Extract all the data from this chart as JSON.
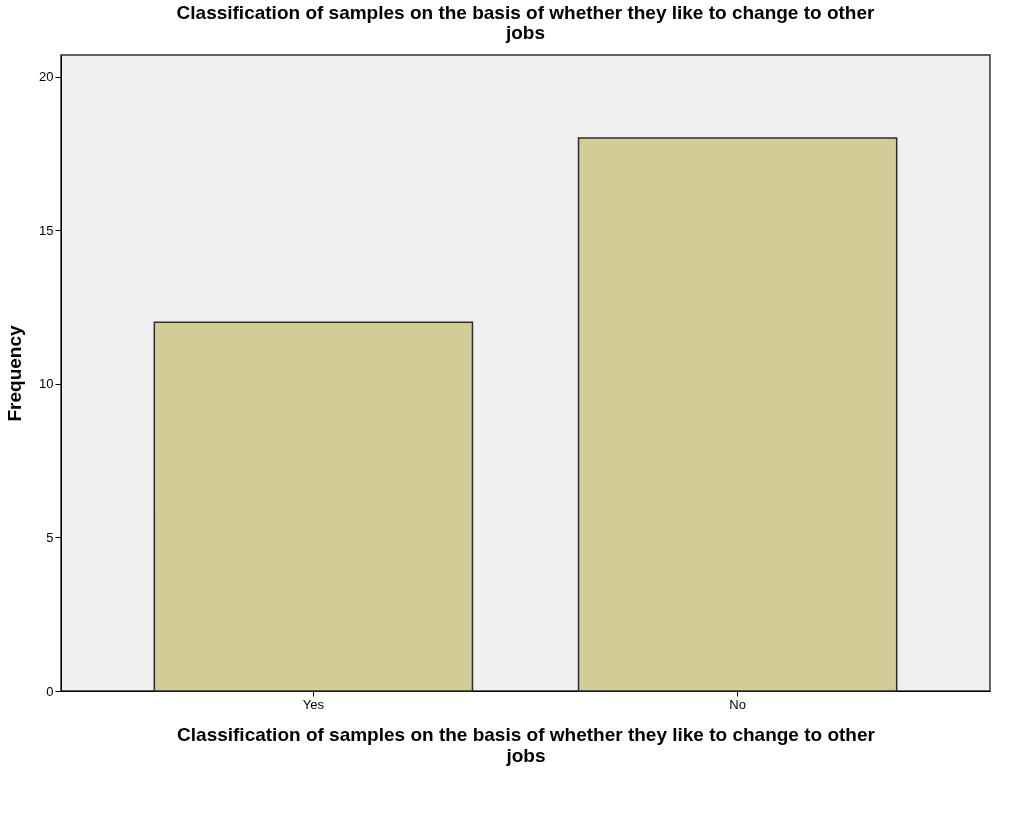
{
  "chart_data": {
    "type": "bar",
    "title": "Classification of samples on the basis of whether they like to change to other jobs",
    "xlabel": "Classification of samples on the basis of whether they like to change to other jobs",
    "ylabel": "Frequency",
    "categories": [
      "Yes",
      "No"
    ],
    "values": [
      12,
      18
    ],
    "color": "#d2cd96",
    "ylim": [
      0,
      20.7
    ],
    "yticks": [
      0,
      5,
      10,
      15,
      20
    ],
    "grid": false
  }
}
